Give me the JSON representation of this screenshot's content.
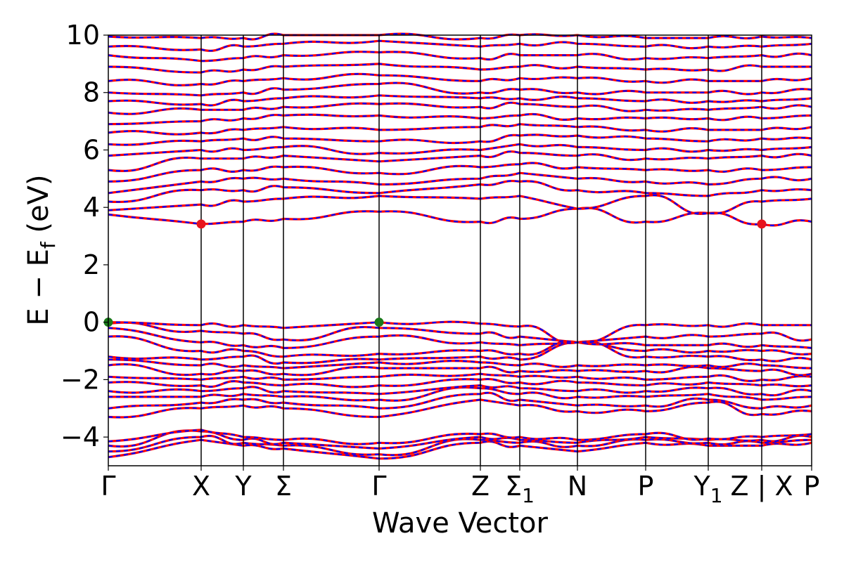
{
  "chart_data": {
    "type": "line",
    "title": "",
    "xlabel": "Wave Vector",
    "ylabel": "E − E_f (eV)",
    "ylabel_parts": {
      "main": "E − E",
      "sub": "f",
      "unit": " (eV)"
    },
    "ylim": [
      -5,
      10
    ],
    "yticks": [
      -4,
      -2,
      0,
      2,
      4,
      6,
      8,
      10
    ],
    "ytick_labels": [
      "−4",
      "−2",
      "0",
      "2",
      "4",
      "6",
      "8",
      "10"
    ],
    "grid": false,
    "kpoints": [
      {
        "label": "Γ",
        "k": 0.0
      },
      {
        "label": "X",
        "k": 1.32
      },
      {
        "label": "Y",
        "k": 1.92
      },
      {
        "label": "Σ",
        "k": 2.49
      },
      {
        "label": "Γ",
        "k": 3.85
      },
      {
        "label": "Z",
        "k": 5.29
      },
      {
        "label": "Σ",
        "sub": "1",
        "k": 5.85
      },
      {
        "label": "N",
        "k": 6.67
      },
      {
        "label": "P",
        "k": 7.64
      },
      {
        "label": "Y",
        "sub": "1",
        "k": 8.53
      },
      {
        "label": "Z | X",
        "k": 9.29
      },
      {
        "label": "P",
        "k": 10.0
      }
    ],
    "line_colors": {
      "primary": "#ff0000",
      "secondary": "#0000ff"
    },
    "markers": [
      {
        "name": "CBM",
        "k": 1.32,
        "energy": 3.42,
        "color": "#e8141c"
      },
      {
        "name": "CBM",
        "k": 9.29,
        "energy": 3.42,
        "color": "#e8141c"
      },
      {
        "name": "VBM",
        "k": 0.0,
        "energy": 0.0,
        "color": "#1a7a1a"
      },
      {
        "name": "VBM",
        "k": 3.85,
        "energy": 0.0,
        "color": "#1a7a1a"
      }
    ],
    "bands": [
      {
        "band": "v1",
        "energy": [
          -4.7,
          -4.1,
          -4.3,
          -4.4,
          -4.75,
          -4.2,
          -4.3,
          -4.5,
          -4.2,
          -4.3,
          -4.3,
          -4.2
        ]
      },
      {
        "band": "v2",
        "energy": [
          -4.5,
          -4.0,
          -4.2,
          -4.3,
          -4.6,
          -4.1,
          -4.2,
          -4.3,
          -4.1,
          -4.2,
          -4.2,
          -4.1
        ]
      },
      {
        "band": "v3",
        "energy": [
          -4.3,
          -3.8,
          -4.1,
          -4.2,
          -4.4,
          -4.0,
          -4.1,
          -4.2,
          -4.0,
          -4.1,
          -4.1,
          -4.0
        ]
      },
      {
        "band": "v4",
        "energy": [
          -4.15,
          -3.75,
          -4.0,
          -4.1,
          -4.2,
          -3.9,
          -4.0,
          -4.1,
          -3.9,
          -4.05,
          -4.0,
          -3.9
        ]
      },
      {
        "band": "v5",
        "energy": [
          -3.3,
          -3.0,
          -2.9,
          -3.0,
          -3.3,
          -2.7,
          -2.9,
          -3.1,
          -3.1,
          -2.8,
          -3.2,
          -3.1
        ]
      },
      {
        "band": "v6",
        "energy": [
          -3.0,
          -2.8,
          -2.7,
          -2.8,
          -3.0,
          -2.5,
          -2.7,
          -2.9,
          -2.9,
          -2.7,
          -3.0,
          -2.9
        ]
      },
      {
        "band": "v7",
        "energy": [
          -2.6,
          -2.6,
          -2.5,
          -2.6,
          -2.7,
          -2.3,
          -2.5,
          -2.6,
          -2.6,
          -2.5,
          -2.7,
          -2.6
        ]
      },
      {
        "band": "v8",
        "energy": [
          -2.4,
          -2.4,
          -2.3,
          -2.4,
          -2.5,
          -2.2,
          -2.3,
          -2.4,
          -2.4,
          -2.3,
          -2.5,
          -2.4
        ]
      },
      {
        "band": "v9",
        "energy": [
          -2.1,
          -2.2,
          -2.1,
          -2.2,
          -2.2,
          -2.0,
          -2.1,
          -2.1,
          -2.2,
          -2.1,
          -2.2,
          -2.2
        ]
      },
      {
        "band": "v10",
        "energy": [
          -1.9,
          -2.0,
          -1.9,
          -2.0,
          -1.9,
          -1.8,
          -1.9,
          -1.9,
          -2.0,
          -1.9,
          -2.0,
          -1.9
        ]
      },
      {
        "band": "v11",
        "energy": [
          -1.5,
          -1.8,
          -1.7,
          -1.8,
          -1.6,
          -1.6,
          -1.7,
          -1.7,
          -1.7,
          -1.6,
          -1.7,
          -1.8
        ]
      },
      {
        "band": "v12",
        "energy": [
          -1.3,
          -1.5,
          -1.5,
          -1.6,
          -1.4,
          -1.4,
          -1.5,
          -1.5,
          -1.5,
          -1.5,
          -1.5,
          -1.6
        ]
      },
      {
        "band": "v13",
        "energy": [
          -1.2,
          -1.3,
          -1.2,
          -1.4,
          -1.3,
          -1.2,
          -1.3,
          -0.7,
          -1.2,
          -1.2,
          -1.3,
          -1.3
        ]
      },
      {
        "band": "v14",
        "energy": [
          -0.5,
          -1.0,
          -1.0,
          -1.2,
          -1.1,
          -1.0,
          -1.1,
          -0.7,
          -1.0,
          -1.0,
          -1.0,
          -1.1
        ]
      },
      {
        "band": "v15",
        "energy": [
          -0.2,
          -0.7,
          -0.8,
          -0.9,
          -0.5,
          -0.7,
          -0.8,
          -0.7,
          -0.8,
          -0.8,
          -0.8,
          -0.9
        ]
      },
      {
        "band": "v16",
        "energy": [
          -0.05,
          -0.3,
          -0.4,
          -0.6,
          -0.2,
          -0.4,
          -0.5,
          -0.7,
          -0.5,
          -0.5,
          -0.4,
          -0.6
        ]
      },
      {
        "band": "v17",
        "energy": [
          0.0,
          -0.1,
          -0.1,
          -0.2,
          0.0,
          -0.05,
          -0.15,
          -0.7,
          -0.1,
          -0.1,
          -0.1,
          -0.1
        ]
      },
      {
        "band": "c1",
        "energy": [
          3.75,
          3.42,
          3.5,
          3.6,
          3.85,
          3.5,
          3.6,
          3.95,
          3.5,
          3.8,
          3.42,
          3.5
        ]
      },
      {
        "band": "c2",
        "energy": [
          3.9,
          4.1,
          4.2,
          4.3,
          4.4,
          4.3,
          4.4,
          3.95,
          4.4,
          3.8,
          4.2,
          4.3
        ]
      },
      {
        "band": "c3",
        "energy": [
          4.2,
          4.6,
          4.6,
          4.7,
          4.5,
          4.8,
          4.9,
          4.6,
          4.5,
          4.4,
          4.6,
          4.6
        ]
      },
      {
        "band": "c4",
        "energy": [
          4.5,
          4.9,
          5.0,
          5.0,
          4.8,
          5.0,
          5.2,
          5.0,
          4.9,
          4.8,
          5.0,
          5.0
        ]
      },
      {
        "band": "c5",
        "energy": [
          4.9,
          5.3,
          5.3,
          5.4,
          5.2,
          5.4,
          5.5,
          5.4,
          5.3,
          5.3,
          5.3,
          5.4
        ]
      },
      {
        "band": "c6",
        "energy": [
          5.3,
          5.7,
          5.7,
          5.8,
          5.6,
          5.8,
          5.9,
          5.8,
          5.7,
          5.7,
          5.8,
          5.8
        ]
      },
      {
        "band": "c7",
        "energy": [
          5.8,
          6.0,
          6.0,
          6.1,
          5.9,
          6.0,
          6.2,
          6.1,
          6.0,
          6.0,
          6.0,
          6.1
        ]
      },
      {
        "band": "c8",
        "energy": [
          6.2,
          6.3,
          6.4,
          6.4,
          6.3,
          6.3,
          6.5,
          6.5,
          6.4,
          6.3,
          6.4,
          6.4
        ]
      },
      {
        "band": "c9",
        "energy": [
          6.6,
          6.6,
          6.7,
          6.8,
          6.7,
          6.8,
          6.9,
          6.8,
          6.7,
          6.7,
          6.7,
          6.8
        ]
      },
      {
        "band": "c10",
        "energy": [
          6.9,
          7.0,
          7.1,
          7.2,
          7.2,
          7.1,
          7.2,
          7.1,
          7.1,
          7.1,
          7.1,
          7.2
        ]
      },
      {
        "band": "c11",
        "energy": [
          7.3,
          7.4,
          7.4,
          7.5,
          7.6,
          7.5,
          7.6,
          7.5,
          7.4,
          7.4,
          7.5,
          7.5
        ]
      },
      {
        "band": "c12",
        "energy": [
          7.7,
          7.6,
          7.7,
          7.8,
          7.9,
          7.8,
          7.8,
          7.8,
          7.7,
          7.7,
          7.7,
          7.8
        ]
      },
      {
        "band": "c13",
        "energy": [
          8.0,
          7.9,
          8.0,
          8.1,
          8.3,
          8.0,
          8.1,
          8.0,
          8.0,
          8.0,
          8.0,
          8.1
        ]
      },
      {
        "band": "c14",
        "energy": [
          8.4,
          8.3,
          8.4,
          8.5,
          8.6,
          8.4,
          8.5,
          8.5,
          8.4,
          8.4,
          8.4,
          8.5
        ]
      },
      {
        "band": "c15",
        "energy": [
          8.9,
          8.7,
          8.8,
          8.9,
          9.0,
          8.8,
          8.9,
          8.9,
          8.8,
          8.8,
          8.9,
          8.9
        ]
      },
      {
        "band": "c16",
        "energy": [
          9.3,
          9.1,
          9.2,
          9.3,
          9.4,
          9.2,
          9.3,
          9.3,
          9.2,
          9.2,
          9.3,
          9.3
        ]
      },
      {
        "band": "c17",
        "energy": [
          9.6,
          9.5,
          9.6,
          9.7,
          9.8,
          9.6,
          9.7,
          9.7,
          9.6,
          9.6,
          9.6,
          9.7
        ]
      },
      {
        "band": "c18",
        "energy": [
          9.95,
          9.9,
          9.9,
          10.0,
          10.0,
          9.9,
          10.0,
          10.0,
          9.9,
          9.9,
          9.95,
          9.9
        ]
      }
    ]
  }
}
